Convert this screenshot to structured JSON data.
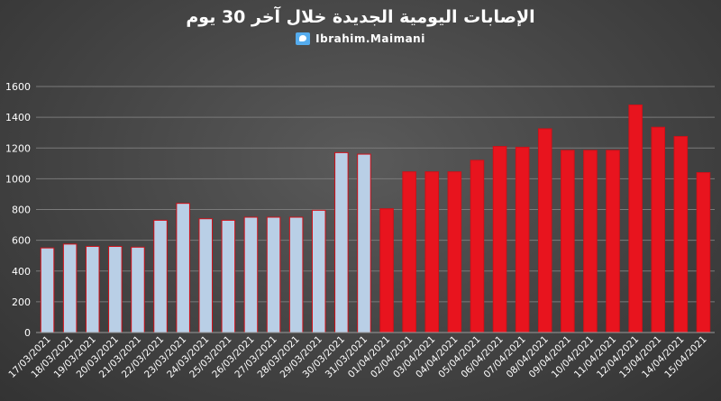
{
  "title": "الإصابات اليومية الجديدة خلال آخر 30 يوم",
  "credit": {
    "icon": "twitter-icon",
    "text": "Ibrahim.Maimani"
  },
  "colors": {
    "background": "#444444",
    "grid": "#7a7a7a",
    "text": "#ffffff",
    "bar_light": "#b9cfe6",
    "bar_red": "#e8141e",
    "bar_border": "#d01018"
  },
  "chart_data": {
    "type": "bar",
    "title": "الإصابات اليومية الجديدة خلال آخر 30 يوم",
    "xlabel": "",
    "ylabel": "",
    "ylim": [
      0,
      1600
    ],
    "yticks": [
      "0",
      "200",
      "400",
      "600",
      "800",
      "1000",
      "1200",
      "1400",
      "1600"
    ],
    "grid": true,
    "categories": [
      "17/03/2021",
      "18/03/2021",
      "19/03/2021",
      "20/03/2021",
      "21/03/2021",
      "22/03/2021",
      "23/03/2021",
      "24/03/2021",
      "25/03/2021",
      "26/03/2021",
      "27/03/2021",
      "28/03/2021",
      "29/03/2021",
      "30/03/2021",
      "31/03/2021",
      "01/04/2021",
      "02/04/2021",
      "03/04/2021",
      "04/04/2021",
      "05/04/2021",
      "06/04/2021",
      "07/04/2021",
      "08/04/2021",
      "09/04/2021",
      "10/04/2021",
      "11/04/2021",
      "12/04/2021",
      "13/04/2021",
      "14/04/2021",
      "15/04/2021"
    ],
    "values": [
      550,
      575,
      560,
      560,
      555,
      730,
      840,
      740,
      730,
      750,
      750,
      750,
      795,
      1170,
      1160,
      805,
      1045,
      1045,
      1045,
      1120,
      1210,
      1205,
      1325,
      1185,
      1185,
      1185,
      1480,
      1335,
      1275,
      1040
    ],
    "bar_colors": [
      "#b9cfe6",
      "#b9cfe6",
      "#b9cfe6",
      "#b9cfe6",
      "#b9cfe6",
      "#b9cfe6",
      "#b9cfe6",
      "#b9cfe6",
      "#b9cfe6",
      "#b9cfe6",
      "#b9cfe6",
      "#b9cfe6",
      "#b9cfe6",
      "#b9cfe6",
      "#b9cfe6",
      "#e8141e",
      "#e8141e",
      "#e8141e",
      "#e8141e",
      "#e8141e",
      "#e8141e",
      "#e8141e",
      "#e8141e",
      "#e8141e",
      "#e8141e",
      "#e8141e",
      "#e8141e",
      "#e8141e",
      "#e8141e",
      "#e8141e"
    ]
  }
}
